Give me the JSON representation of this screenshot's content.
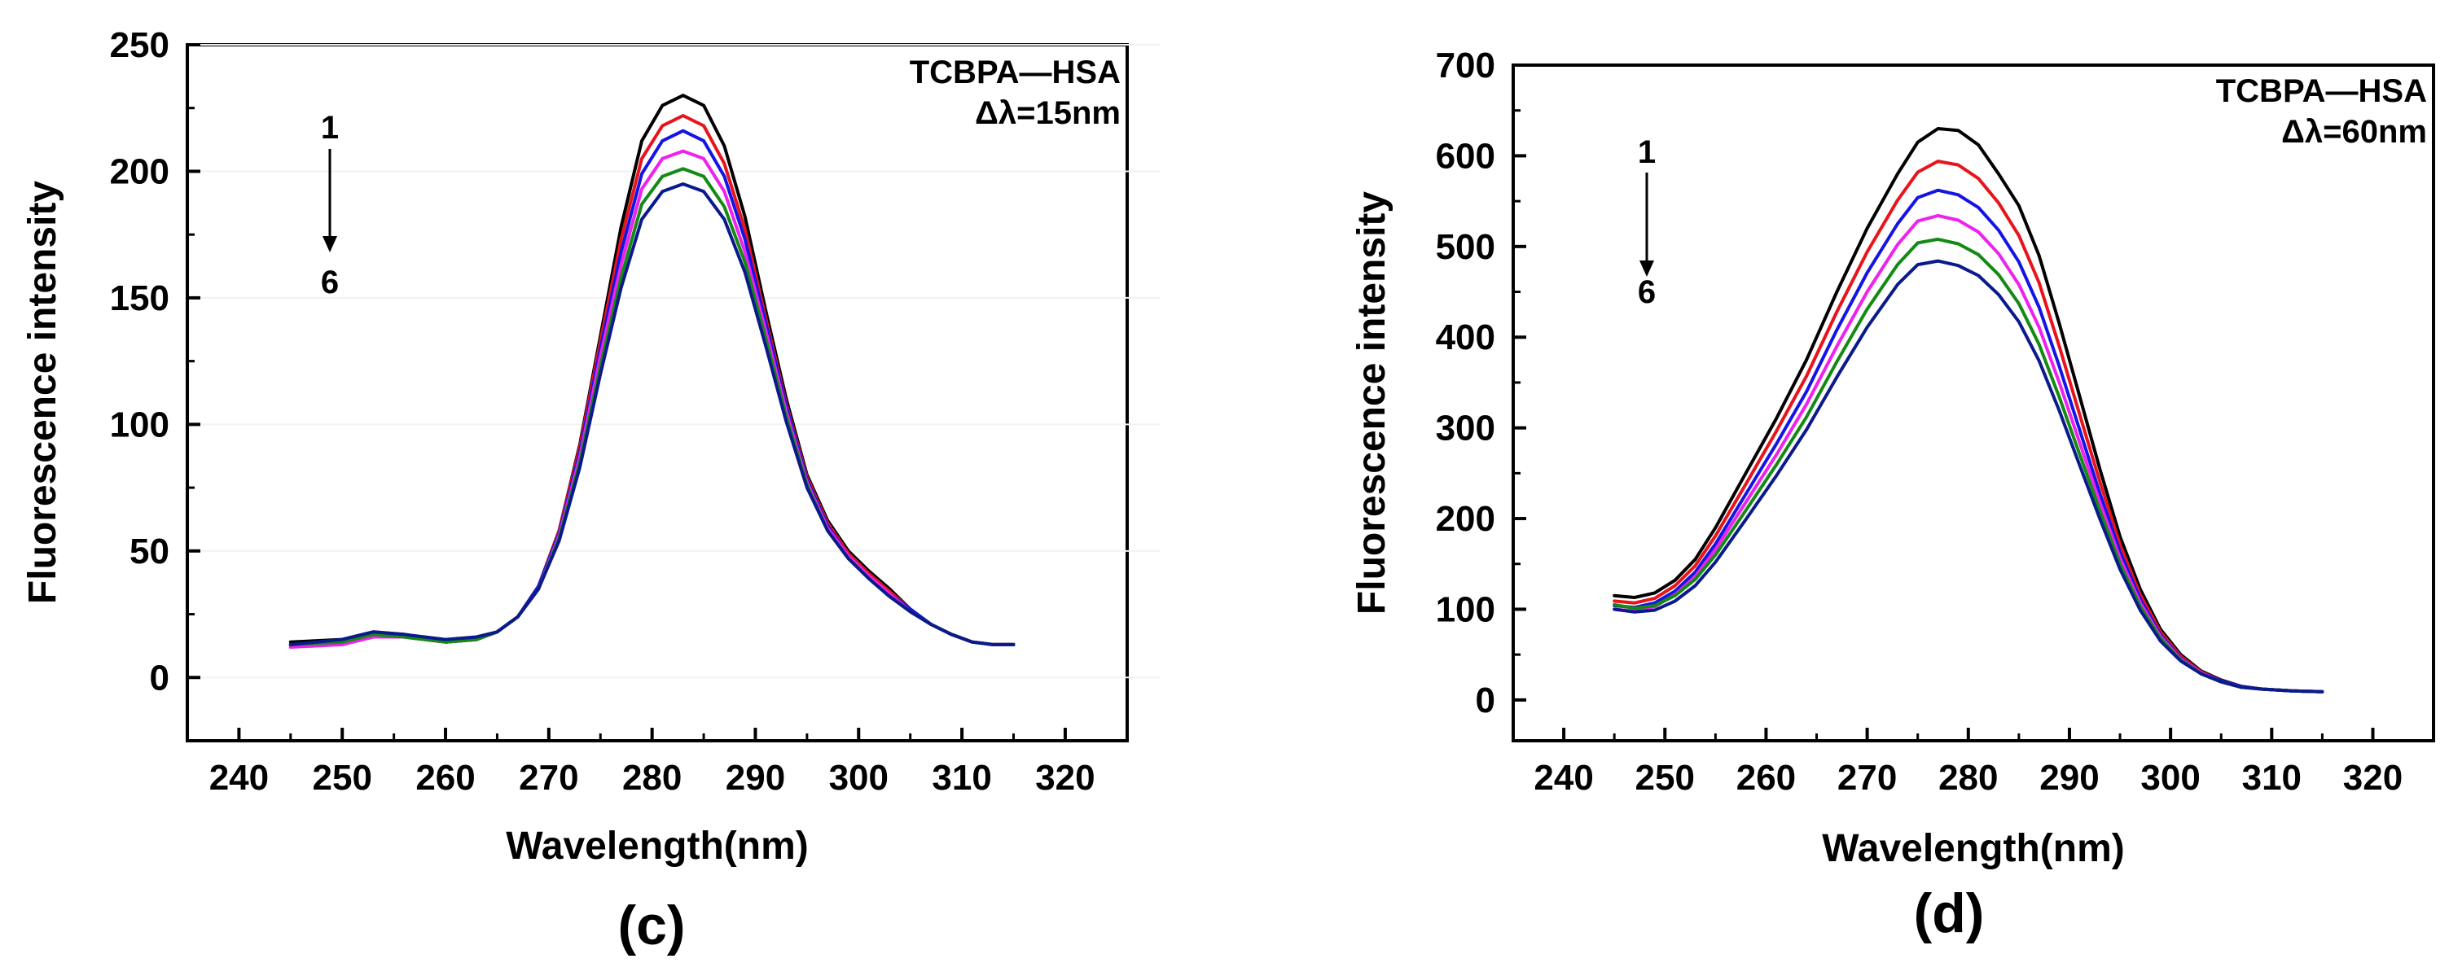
{
  "figure": {
    "panels": [
      {
        "panel_label": "(c)"
      },
      {
        "panel_label": "(d)"
      }
    ]
  },
  "chart_data": [
    {
      "type": "line",
      "title": "",
      "annotation": "TCBPA—HSA",
      "annotation2": "Δλ=15nm",
      "arrow_top": "1",
      "arrow_bottom": "6",
      "xlabel": "Wavelength(nm)",
      "ylabel": "Fluorescence intensity",
      "xlim": [
        235,
        326
      ],
      "ylim": [
        -25,
        250
      ],
      "xticks": [
        240,
        250,
        260,
        270,
        280,
        290,
        300,
        310,
        320
      ],
      "yticks": [
        0,
        50,
        100,
        150,
        200,
        250
      ],
      "grid": false,
      "colors": [
        "#000000",
        "#e8141b",
        "#1414e6",
        "#ee22ee",
        "#148a14",
        "#0a1a8c"
      ],
      "x": [
        245,
        250,
        253,
        256,
        260,
        263,
        265,
        267,
        269,
        271,
        273,
        275,
        277,
        279,
        281,
        283,
        285,
        287,
        289,
        291,
        293,
        295,
        297,
        299,
        301,
        303,
        305,
        307,
        309,
        311,
        313,
        315
      ],
      "series": [
        {
          "name": "1",
          "values": [
            14,
            15,
            18,
            17,
            14,
            15,
            18,
            24,
            36,
            58,
            92,
            135,
            178,
            212,
            226,
            230,
            226,
            210,
            182,
            145,
            110,
            80,
            62,
            50,
            42,
            35,
            27,
            21,
            17,
            14,
            13,
            13
          ]
        },
        {
          "name": "2",
          "values": [
            13,
            14,
            17,
            16,
            14,
            15,
            18,
            24,
            36,
            58,
            91,
            133,
            173,
            205,
            218,
            222,
            218,
            203,
            177,
            142,
            108,
            79,
            61,
            49,
            41,
            34,
            27,
            21,
            17,
            14,
            13,
            13
          ]
        },
        {
          "name": "3",
          "values": [
            13,
            14,
            17,
            16,
            14,
            15,
            18,
            24,
            36,
            57,
            89,
            130,
            168,
            199,
            212,
            216,
            212,
            198,
            173,
            140,
            107,
            78,
            60,
            48,
            40,
            33,
            27,
            21,
            17,
            14,
            13,
            13
          ]
        },
        {
          "name": "4",
          "values": [
            12,
            13,
            16,
            16,
            14,
            15,
            18,
            24,
            35,
            56,
            87,
            127,
            163,
            193,
            205,
            208,
            205,
            192,
            168,
            137,
            105,
            77,
            59,
            48,
            40,
            33,
            26,
            21,
            17,
            14,
            13,
            13
          ]
        },
        {
          "name": "5",
          "values": [
            13,
            14,
            17,
            16,
            14,
            15,
            18,
            24,
            35,
            55,
            85,
            123,
            158,
            187,
            198,
            201,
            198,
            186,
            164,
            134,
            103,
            76,
            58,
            47,
            39,
            32,
            26,
            21,
            17,
            14,
            13,
            13
          ]
        },
        {
          "name": "6",
          "values": [
            13,
            15,
            18,
            17,
            15,
            16,
            18,
            24,
            35,
            54,
            83,
            120,
            154,
            181,
            192,
            195,
            192,
            181,
            160,
            131,
            101,
            75,
            58,
            47,
            39,
            32,
            26,
            21,
            17,
            14,
            13,
            13
          ]
        }
      ]
    },
    {
      "type": "line",
      "title": "",
      "annotation": "TCBPA—HSA",
      "annotation2": "Δλ=60nm",
      "arrow_top": "1",
      "arrow_bottom": "6",
      "xlabel": "Wavelength(nm)",
      "ylabel": "Fluorescence intensity",
      "xlim": [
        235,
        326
      ],
      "ylim": [
        -45,
        700
      ],
      "xticks": [
        240,
        250,
        260,
        270,
        280,
        290,
        300,
        310,
        320
      ],
      "yticks": [
        0,
        100,
        200,
        300,
        400,
        500,
        600,
        700
      ],
      "grid": false,
      "colors": [
        "#000000",
        "#e8141b",
        "#1414e6",
        "#ee22ee",
        "#148a14",
        "#0a1a8c"
      ],
      "x": [
        245,
        247,
        249,
        251,
        253,
        255,
        258,
        261,
        264,
        267,
        270,
        273,
        275,
        277,
        279,
        281,
        283,
        285,
        287,
        289,
        291,
        293,
        295,
        297,
        299,
        301,
        303,
        305,
        307,
        309,
        312,
        315
      ],
      "series": [
        {
          "name": "1",
          "values": [
            115,
            113,
            118,
            132,
            155,
            190,
            250,
            310,
            375,
            450,
            520,
            580,
            615,
            630,
            628,
            612,
            580,
            545,
            490,
            415,
            335,
            255,
            180,
            122,
            78,
            50,
            32,
            22,
            15,
            12,
            10,
            9
          ]
        },
        {
          "name": "2",
          "values": [
            109,
            107,
            112,
            126,
            148,
            181,
            238,
            296,
            357,
            428,
            494,
            551,
            582,
            594,
            590,
            575,
            548,
            512,
            460,
            390,
            315,
            241,
            171,
            116,
            75,
            48,
            31,
            21,
            15,
            12,
            10,
            9
          ]
        },
        {
          "name": "3",
          "values": [
            104,
            102,
            107,
            120,
            141,
            172,
            227,
            282,
            340,
            408,
            471,
            525,
            554,
            562,
            557,
            543,
            518,
            483,
            433,
            368,
            298,
            228,
            163,
            111,
            72,
            46,
            30,
            21,
            15,
            12,
            10,
            9
          ]
        },
        {
          "name": "4",
          "values": [
            100,
            98,
            103,
            116,
            136,
            166,
            218,
            270,
            326,
            390,
            450,
            502,
            528,
            534,
            529,
            516,
            492,
            458,
            411,
            350,
            284,
            218,
            156,
            107,
            70,
            45,
            30,
            20,
            14,
            12,
            10,
            9
          ]
        },
        {
          "name": "5",
          "values": [
            105,
            101,
            104,
            115,
            133,
            160,
            209,
            259,
            312,
            373,
            431,
            480,
            504,
            508,
            503,
            491,
            469,
            437,
            392,
            334,
            271,
            209,
            150,
            103,
            68,
            44,
            29,
            20,
            14,
            12,
            10,
            9
          ]
        },
        {
          "name": "6",
          "values": [
            100,
            97,
            99,
            109,
            126,
            152,
            199,
            247,
            298,
            356,
            411,
            458,
            480,
            484,
            479,
            468,
            447,
            417,
            374,
            319,
            259,
            200,
            144,
            99,
            65,
            43,
            29,
            20,
            14,
            12,
            10,
            9
          ]
        }
      ]
    }
  ]
}
